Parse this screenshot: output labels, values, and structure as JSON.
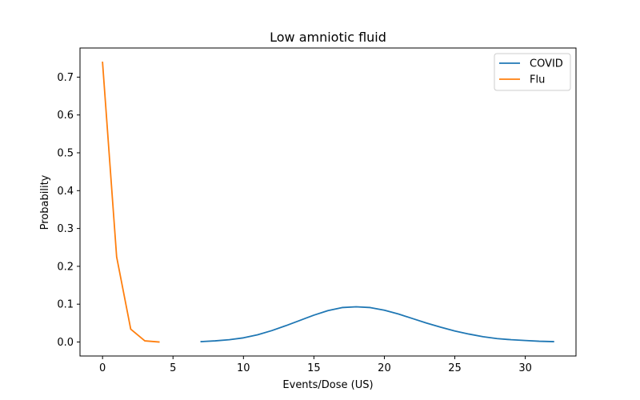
{
  "chart_data": {
    "type": "line",
    "title": "Low amniotic fluid",
    "xlabel": "Events/Dose (US)",
    "ylabel": "Probability",
    "xlim": [
      -1.6,
      33.6
    ],
    "ylim": [
      -0.037,
      0.777
    ],
    "xticks": [
      0,
      5,
      10,
      15,
      20,
      25,
      30
    ],
    "yticks": [
      0.0,
      0.1,
      0.2,
      0.3,
      0.4,
      0.5,
      0.6,
      0.7
    ],
    "grid": false,
    "legend_position": "top-right",
    "series": [
      {
        "name": "COVID",
        "color": "#1f77b4",
        "x": [
          7,
          8,
          9,
          10,
          11,
          12,
          13,
          14,
          15,
          16,
          17,
          18,
          19,
          20,
          21,
          22,
          23,
          24,
          25,
          26,
          27,
          28,
          29,
          30,
          31,
          32
        ],
        "y": [
          0.001,
          0.003,
          0.006,
          0.011,
          0.019,
          0.03,
          0.043,
          0.057,
          0.071,
          0.083,
          0.091,
          0.093,
          0.091,
          0.084,
          0.074,
          0.062,
          0.05,
          0.039,
          0.029,
          0.021,
          0.014,
          0.009,
          0.006,
          0.004,
          0.002,
          0.001
        ]
      },
      {
        "name": "Flu",
        "color": "#ff7f0e",
        "x": [
          0,
          1,
          2,
          3,
          4
        ],
        "y": [
          0.739,
          0.225,
          0.034,
          0.003,
          0.0
        ]
      }
    ]
  }
}
